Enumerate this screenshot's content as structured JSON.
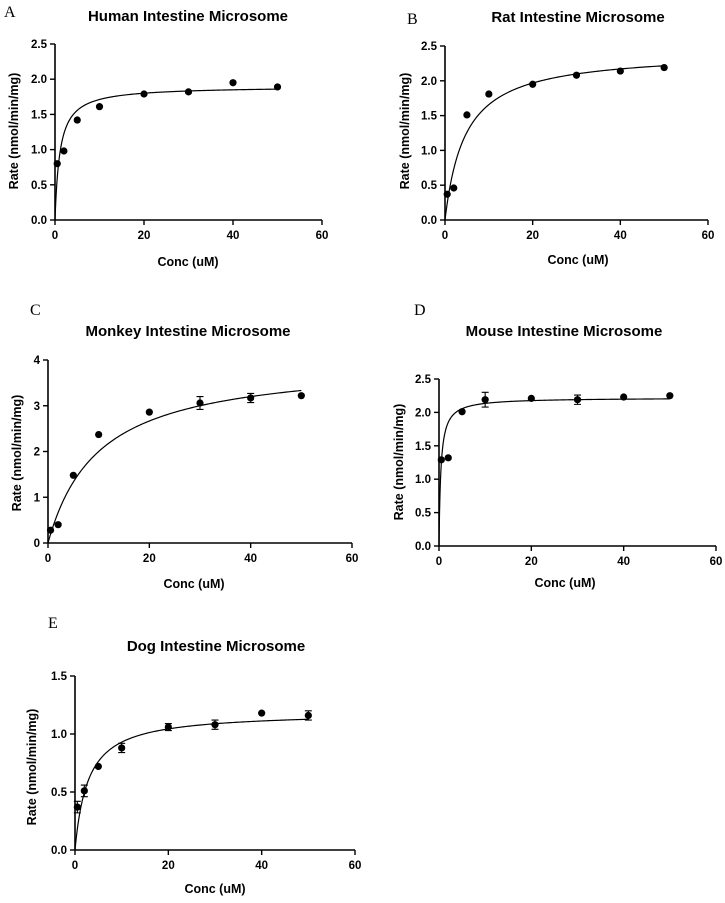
{
  "chart_data": [
    {
      "type": "scatter",
      "panel": "A",
      "title": "Human Intestine Microsome",
      "xlabel": "Conc (uM)",
      "ylabel": "Rate (nmol/min/mg)",
      "xlim": [
        0,
        60
      ],
      "ylim": [
        0,
        2.5
      ],
      "xticks": [
        0,
        20,
        40,
        60
      ],
      "yticks": [
        0.0,
        0.5,
        1.0,
        1.5,
        2.0,
        2.5
      ],
      "ytick_labels": [
        "0.0",
        "0.5",
        "1.0",
        "1.5",
        "2.0",
        "2.5"
      ],
      "series": [
        {
          "x": [
            0.5,
            2,
            5,
            10,
            20,
            30,
            40,
            50
          ],
          "y": [
            0.8,
            0.98,
            1.42,
            1.61,
            1.79,
            1.82,
            1.95,
            1.89
          ],
          "err": [
            0,
            0,
            0,
            0,
            0,
            0,
            0,
            0
          ]
        }
      ],
      "fit": {
        "model": "michaelis-menten",
        "vmax": 1.9,
        "km": 1.1
      }
    },
    {
      "type": "scatter",
      "panel": "B",
      "title": "Rat Intestine Microsome",
      "xlabel": "Conc (uM)",
      "ylabel": "Rate (nmol/min/mg)",
      "xlim": [
        0,
        60
      ],
      "ylim": [
        0,
        2.5
      ],
      "xticks": [
        0,
        20,
        40,
        60
      ],
      "yticks": [
        0.0,
        0.5,
        1.0,
        1.5,
        2.0,
        2.5
      ],
      "ytick_labels": [
        "0.0",
        "0.5",
        "1.0",
        "1.5",
        "2.0",
        "2.5"
      ],
      "series": [
        {
          "x": [
            0.5,
            2,
            5,
            10,
            20,
            30,
            40,
            50
          ],
          "y": [
            0.37,
            0.46,
            1.51,
            1.81,
            1.95,
            2.08,
            2.14,
            2.19
          ],
          "err": [
            0,
            0,
            0,
            0,
            0,
            0,
            0,
            0
          ]
        }
      ],
      "fit": {
        "model": "michaelis-menten",
        "vmax": 2.42,
        "km": 4.6
      }
    },
    {
      "type": "scatter",
      "panel": "C",
      "title": "Monkey Intestine Microsome",
      "xlabel": "Conc (uM)",
      "ylabel": "Rate (nmol/min/mg)",
      "xlim": [
        0,
        60
      ],
      "ylim": [
        0,
        4
      ],
      "xticks": [
        0,
        20,
        40,
        60
      ],
      "yticks": [
        0,
        1,
        2,
        3,
        4
      ],
      "ytick_labels": [
        "0",
        "1",
        "2",
        "3",
        "4"
      ],
      "series": [
        {
          "x": [
            0.5,
            2,
            5,
            10,
            20,
            30,
            40,
            50
          ],
          "y": [
            0.28,
            0.4,
            1.48,
            2.37,
            2.86,
            3.06,
            3.17,
            3.22
          ],
          "err": [
            0,
            0,
            0,
            0,
            0,
            0.14,
            0.1,
            0
          ]
        }
      ],
      "fit": {
        "model": "michaelis-menten",
        "vmax": 4.0,
        "km": 10.0
      }
    },
    {
      "type": "scatter",
      "panel": "D",
      "title": "Mouse Intestine Microsome",
      "xlabel": "Conc (uM)",
      "ylabel": "Rate (nmol/min/mg)",
      "xlim": [
        0,
        60
      ],
      "ylim": [
        0,
        2.5
      ],
      "xticks": [
        0,
        20,
        40,
        60
      ],
      "yticks": [
        0.0,
        0.5,
        1.0,
        1.5,
        2.0,
        2.5
      ],
      "ytick_labels": [
        "0.0",
        "0.5",
        "1.0",
        "1.5",
        "2.0",
        "2.5"
      ],
      "series": [
        {
          "x": [
            0.5,
            2,
            5,
            10,
            20,
            30,
            40,
            50
          ],
          "y": [
            1.29,
            1.32,
            2.01,
            2.19,
            2.21,
            2.19,
            2.23,
            2.25
          ],
          "err": [
            0,
            0,
            0,
            0.11,
            0,
            0.07,
            0,
            0
          ]
        }
      ],
      "fit": {
        "model": "michaelis-menten",
        "vmax": 2.22,
        "km": 0.4
      }
    },
    {
      "type": "scatter",
      "panel": "E",
      "title": "Dog Intestine Microsome",
      "xlabel": "Conc (uM)",
      "ylabel": "Rate (nmol/min/mg)",
      "xlim": [
        0,
        60
      ],
      "ylim": [
        0,
        1.5
      ],
      "xticks": [
        0,
        20,
        40,
        60
      ],
      "yticks": [
        0.0,
        0.5,
        1.0,
        1.5
      ],
      "ytick_labels": [
        "0.0",
        "0.5",
        "1.0",
        "1.5"
      ],
      "series": [
        {
          "x": [
            0.5,
            2,
            5,
            10,
            20,
            30,
            40,
            50
          ],
          "y": [
            0.37,
            0.51,
            0.72,
            0.88,
            1.06,
            1.08,
            1.18,
            1.16
          ],
          "err": [
            0.05,
            0.05,
            0,
            0.04,
            0.03,
            0.04,
            0,
            0.04
          ]
        }
      ],
      "fit": {
        "model": "michaelis-menten",
        "vmax": 1.19,
        "km": 2.8
      }
    }
  ]
}
